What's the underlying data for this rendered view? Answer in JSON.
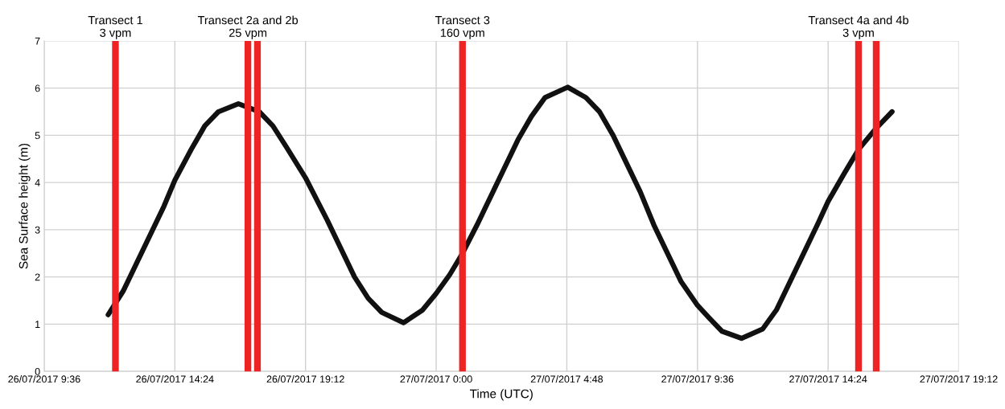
{
  "chart_data": {
    "type": "line",
    "xlabel": "Time (UTC)",
    "ylabel": "Sea Surface height (m)",
    "x": [
      "2017-07-26T11:57",
      "2017-07-26T12:30",
      "2017-07-26T13:00",
      "2017-07-26T13:30",
      "2017-07-26T14:00",
      "2017-07-26T14:24",
      "2017-07-26T15:00",
      "2017-07-26T15:30",
      "2017-07-26T16:00",
      "2017-07-26T16:44",
      "2017-07-26T17:30",
      "2017-07-26T18:00",
      "2017-07-26T18:30",
      "2017-07-26T19:12",
      "2017-07-26T20:00",
      "2017-07-26T20:30",
      "2017-07-26T21:00",
      "2017-07-26T21:30",
      "2017-07-26T22:00",
      "2017-07-26T22:48",
      "2017-07-26T23:30",
      "2017-07-27T00:00",
      "2017-07-27T00:30",
      "2017-07-27T00:58",
      "2017-07-27T01:30",
      "2017-07-27T02:00",
      "2017-07-27T02:30",
      "2017-07-27T03:00",
      "2017-07-27T03:30",
      "2017-07-27T04:00",
      "2017-07-27T04:50",
      "2017-07-27T05:30",
      "2017-07-27T06:00",
      "2017-07-27T06:30",
      "2017-07-27T07:00",
      "2017-07-27T07:30",
      "2017-07-27T08:00",
      "2017-07-27T08:30",
      "2017-07-27T09:00",
      "2017-07-27T09:36",
      "2017-07-27T10:00",
      "2017-07-27T10:30",
      "2017-07-27T11:13",
      "2017-07-27T12:00",
      "2017-07-27T12:30",
      "2017-07-27T13:00",
      "2017-07-27T13:30",
      "2017-07-27T14:00",
      "2017-07-27T14:24",
      "2017-07-27T15:00",
      "2017-07-27T15:31",
      "2017-07-27T16:10",
      "2017-07-27T16:45"
    ],
    "series": [
      {
        "color": "#111111",
        "values": [
          1.2,
          1.7,
          2.3,
          2.9,
          3.5,
          4.05,
          4.7,
          5.2,
          5.5,
          5.67,
          5.5,
          5.2,
          4.75,
          4.1,
          3.2,
          2.6,
          2.0,
          1.55,
          1.25,
          1.03,
          1.3,
          1.65,
          2.05,
          2.5,
          3.1,
          3.7,
          4.3,
          4.9,
          5.4,
          5.8,
          6.02,
          5.8,
          5.5,
          5.0,
          4.4,
          3.8,
          3.1,
          2.5,
          1.9,
          1.4,
          1.15,
          0.85,
          0.7,
          0.9,
          1.3,
          1.9,
          2.5,
          3.1,
          3.6,
          4.2,
          4.7,
          5.15,
          5.5
        ]
      }
    ],
    "xlim": [
      "2017-07-26T09:36",
      "2017-07-27T19:12"
    ],
    "xticks": [
      {
        "value": "2017-07-26T09:36",
        "label": "26/07/2017 9:36"
      },
      {
        "value": "2017-07-26T14:24",
        "label": "26/07/2017 14:24"
      },
      {
        "value": "2017-07-26T19:12",
        "label": "26/07/2017 19:12"
      },
      {
        "value": "2017-07-27T00:00",
        "label": "27/07/2017 0:00"
      },
      {
        "value": "2017-07-27T04:48",
        "label": "27/07/2017 4:48"
      },
      {
        "value": "2017-07-27T09:36",
        "label": "27/07/2017 9:36"
      },
      {
        "value": "2017-07-27T14:24",
        "label": "27/07/2017 14:24"
      },
      {
        "value": "2017-07-27T19:12",
        "label": "27/07/2017 19:12"
      }
    ],
    "ylim": [
      0,
      7
    ],
    "yticks": [
      0,
      1,
      2,
      3,
      4,
      5,
      6,
      7
    ],
    "grid": true,
    "marker": "none",
    "line_style": "solid",
    "ref_lines": [
      {
        "axis": "x",
        "value": "2017-07-26T12:13",
        "label": "Transect 1\n3 vpm",
        "color": "#ee2424"
      },
      {
        "axis": "x",
        "value": "2017-07-26T17:05",
        "label": "Transect 2a and 2b\n25 vpm",
        "color": "#ee2424"
      },
      {
        "axis": "x",
        "value": "2017-07-26T17:26",
        "label": null,
        "color": "#ee2424"
      },
      {
        "axis": "x",
        "value": "2017-07-27T00:58",
        "label": "Transect 3\n160 vpm",
        "color": "#ee2424"
      },
      {
        "axis": "x",
        "value": "2017-07-27T15:31",
        "label": "Transect 4a and 4b\n3 vpm",
        "color": "#ee2424"
      },
      {
        "axis": "x",
        "value": "2017-07-27T16:10",
        "label": null,
        "color": "#ee2424"
      }
    ]
  }
}
